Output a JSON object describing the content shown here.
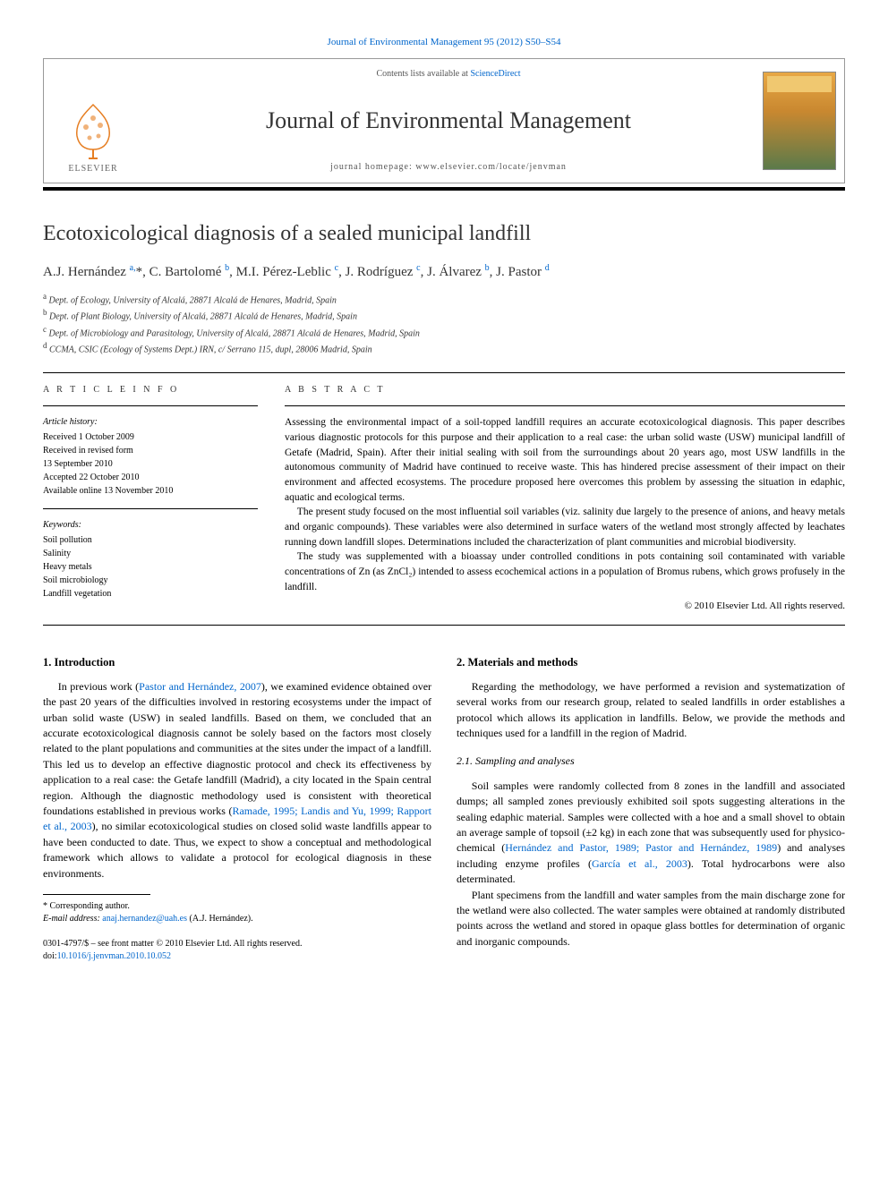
{
  "journal_ref": "Journal of Environmental Management 95 (2012) S50–S54",
  "header": {
    "contents_prefix": "Contents lists available at ",
    "contents_link": "ScienceDirect",
    "journal_name": "Journal of Environmental Management",
    "homepage_prefix": "journal homepage: ",
    "homepage_url": "www.elsevier.com/locate/jenvman",
    "publisher_label": "ELSEVIER"
  },
  "article": {
    "title": "Ecotoxicological diagnosis of a sealed municipal landfill",
    "authors_html": "A.J. Hernández <sup>a,</sup>*, C. Bartolomé <sup>b</sup>, M.I. Pérez-Leblic <sup>c</sup>, J. Rodríguez <sup>c</sup>, J. Álvarez <sup>b</sup>, J. Pastor <sup>d</sup>",
    "affiliations": {
      "a": "Dept. of Ecology, University of Alcalá, 28871 Alcalá de Henares, Madrid, Spain",
      "b": "Dept. of Plant Biology, University of Alcalá, 28871 Alcalá de Henares, Madrid, Spain",
      "c": "Dept. of Microbiology and Parasitology, University of Alcalá, 28871 Alcalá de Henares, Madrid, Spain",
      "d": "CCMA, CSIC (Ecology of Systems Dept.) IRN, c/ Serrano 115, dupl, 28006 Madrid, Spain"
    }
  },
  "info": {
    "heading": "A R T I C L E   I N F O",
    "history_label": "Article history:",
    "received": "Received 1 October 2009",
    "revised1": "Received in revised form",
    "revised2": "13 September 2010",
    "accepted": "Accepted 22 October 2010",
    "online": "Available online 13 November 2010",
    "keywords_label": "Keywords:",
    "keywords": [
      "Soil pollution",
      "Salinity",
      "Heavy metals",
      "Soil microbiology",
      "Landfill vegetation"
    ]
  },
  "abstract": {
    "heading": "A B S T R A C T",
    "p1": "Assessing the environmental impact of a soil-topped landfill requires an accurate ecotoxicological diagnosis. This paper describes various diagnostic protocols for this purpose and their application to a real case: the urban solid waste (USW) municipal landfill of Getafe (Madrid, Spain). After their initial sealing with soil from the surroundings about 20 years ago, most USW landfills in the autonomous community of Madrid have continued to receive waste. This has hindered precise assessment of their impact on their environment and affected ecosystems. The procedure proposed here overcomes this problem by assessing the situation in edaphic, aquatic and ecological terms.",
    "p2": "The present study focused on the most influential soil variables (viz. salinity due largely to the presence of anions, and heavy metals and organic compounds). These variables were also determined in surface waters of the wetland most strongly affected by leachates running down landfill slopes. Determinations included the characterization of plant communities and microbial biodiversity.",
    "p3": "The study was supplemented with a bioassay under controlled conditions in pots containing soil contaminated with variable concentrations of Zn (as ZnCl₂) intended to assess ecochemical actions in a population of Bromus rubens, which grows profusely in the landfill.",
    "copyright": "© 2010 Elsevier Ltd. All rights reserved."
  },
  "body": {
    "s1_title": "1. Introduction",
    "s1_p1": "In previous work (Pastor and Hernández, 2007), we examined evidence obtained over the past 20 years of the difficulties involved in restoring ecosystems under the impact of urban solid waste (USW) in sealed landfills. Based on them, we concluded that an accurate ecotoxicological diagnosis cannot be solely based on the factors most closely related to the plant populations and communities at the sites under the impact of a landfill. This led us to develop an effective diagnostic protocol and check its effectiveness by application to a real case: the Getafe landfill (Madrid), a city located in the Spain central region. Although the diagnostic methodology used is consistent with theoretical foundations established in previous works (Ramade, 1995; Landis and Yu, 1999; Rapport et al., 2003), no similar ecotoxicological studies on closed solid waste landfills appear to have been conducted to date. Thus, we expect to show a conceptual and methodological framework which allows to validate a protocol for ecological diagnosis in these environments.",
    "s2_title": "2. Materials and methods",
    "s2_p1": "Regarding the methodology, we have performed a revision and systematization of several works from our research group, related to sealed landfills in order establishes a protocol which allows its application in landfills. Below, we provide the methods and techniques used for a landfill in the region of Madrid.",
    "s21_title": "2.1. Sampling and analyses",
    "s21_p1": "Soil samples were randomly collected from 8 zones in the landfill and associated dumps; all sampled zones previously exhibited soil spots suggesting alterations in the sealing edaphic material. Samples were collected with a hoe and a small shovel to obtain an average sample of topsoil (±2 kg) in each zone that was subsequently used for physico-chemical (Hernández and Pastor, 1989; Pastor and Hernández, 1989) and analyses including enzyme profiles (García et al., 2003). Total hydrocarbons were also determinated.",
    "s21_p2": "Plant specimens from the landfill and water samples from the main discharge zone for the wetland were also collected. The water samples were obtained at randomly distributed points across the wetland and stored in opaque glass bottles for determination of organic and inorganic compounds."
  },
  "footnote": {
    "corresponding": "* Corresponding author.",
    "email_label": "E-mail address: ",
    "email": "anaj.hernandez@uah.es",
    "email_suffix": " (A.J. Hernández)."
  },
  "footer": {
    "line1": "0301-4797/$ – see front matter © 2010 Elsevier Ltd. All rights reserved.",
    "doi_prefix": "doi:",
    "doi": "10.1016/j.jenvman.2010.10.052"
  }
}
